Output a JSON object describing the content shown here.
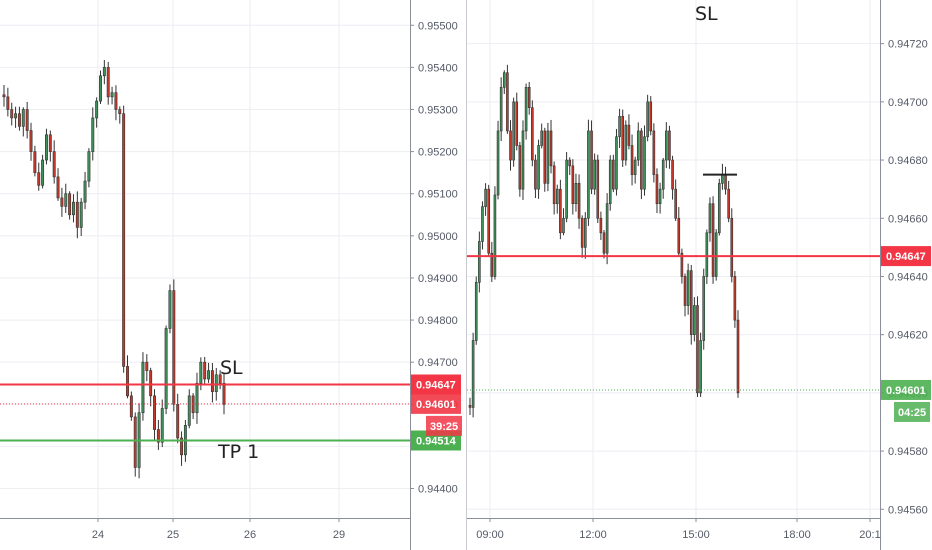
{
  "chart_data": [
    {
      "type": "candlestick",
      "timeframe_note": "",
      "x_ticks": [
        "24",
        "25",
        "26",
        "29"
      ],
      "y_ticks": [
        "0.94400",
        "0.94500",
        "0.94600",
        "0.94700",
        "0.94800",
        "0.94900",
        "0.95000",
        "0.95100",
        "0.95200",
        "0.95300",
        "0.95400",
        "0.95500"
      ],
      "ylim": [
        0.9433,
        0.9556
      ],
      "lines": {
        "sl": {
          "value": 0.94647,
          "label": "0.94647",
          "color": "#f23645",
          "text": "SL"
        },
        "last": {
          "value": 0.94601,
          "label": "0.94601",
          "color": "#f23645"
        },
        "tp": {
          "value": 0.94514,
          "label": "0.94514",
          "color": "#4caf50",
          "text": "TP 1"
        }
      },
      "countdown": "39:25",
      "closes": [
        0.9533,
        0.953,
        0.9528,
        0.9529,
        0.9526,
        0.953,
        0.9525,
        0.952,
        0.9515,
        0.9512,
        0.9518,
        0.9524,
        0.952,
        0.9514,
        0.9509,
        0.9507,
        0.951,
        0.9505,
        0.9508,
        0.9502,
        0.9508,
        0.9513,
        0.952,
        0.9528,
        0.9532,
        0.9538,
        0.954,
        0.9533,
        0.9534,
        0.953,
        0.9529,
        0.9469,
        0.9462,
        0.9457,
        0.9445,
        0.9458,
        0.947,
        0.9468,
        0.9462,
        0.9454,
        0.9451,
        0.9459,
        0.9478,
        0.9487,
        0.946,
        0.9452,
        0.9448,
        0.9455,
        0.9462,
        0.9458,
        0.9465,
        0.947,
        0.9466,
        0.9468,
        0.9463,
        0.9467,
        0.9465,
        0.946
      ]
    },
    {
      "type": "candlestick",
      "title": "SL",
      "x_ticks": [
        "09:00",
        "12:00",
        "15:00",
        "18:00",
        "20:1"
      ],
      "y_ticks": [
        "0.94560",
        "0.94580",
        "0.94600",
        "0.94620",
        "0.94640",
        "0.94660",
        "0.94680",
        "0.94700",
        "0.94720"
      ],
      "ylim": [
        0.94557,
        0.94735
      ],
      "lines": {
        "sl": {
          "value": 0.94647,
          "label": "0.94647",
          "color": "#f23645"
        },
        "last": {
          "value": 0.94601,
          "label": "0.94601",
          "color": "#4caf50"
        },
        "high_marker": {
          "value": 0.94675
        }
      },
      "countdown": "04:25",
      "closes": [
        0.94595,
        0.94618,
        0.94638,
        0.94652,
        0.94664,
        0.9467,
        0.94648,
        0.9464,
        0.94668,
        0.9469,
        0.94705,
        0.9471,
        0.9469,
        0.9468,
        0.947,
        0.94685,
        0.9467,
        0.9469,
        0.94705,
        0.94698,
        0.9468,
        0.9467,
        0.94685,
        0.9469,
        0.94672,
        0.9469,
        0.94678,
        0.94665,
        0.9467,
        0.94655,
        0.9466,
        0.9468,
        0.94678,
        0.94665,
        0.94672,
        0.9466,
        0.9465,
        0.9466,
        0.9469,
        0.9467,
        0.9468,
        0.9466,
        0.94655,
        0.94648,
        0.94665,
        0.9468,
        0.9467,
        0.94688,
        0.94695,
        0.9468,
        0.94692,
        0.94685,
        0.94675,
        0.9468,
        0.9469,
        0.9467,
        0.94688,
        0.947,
        0.9469,
        0.94675,
        0.94665,
        0.9467,
        0.9468,
        0.9469,
        0.9468,
        0.9467,
        0.9466,
        0.94648,
        0.9464,
        0.9463,
        0.94642,
        0.9462,
        0.9463,
        0.946,
        0.94618,
        0.9464,
        0.94655,
        0.94665,
        0.9464,
        0.94655,
        0.94672,
        0.94675,
        0.9467,
        0.9466,
        0.9464,
        0.94625,
        0.946
      ]
    }
  ]
}
